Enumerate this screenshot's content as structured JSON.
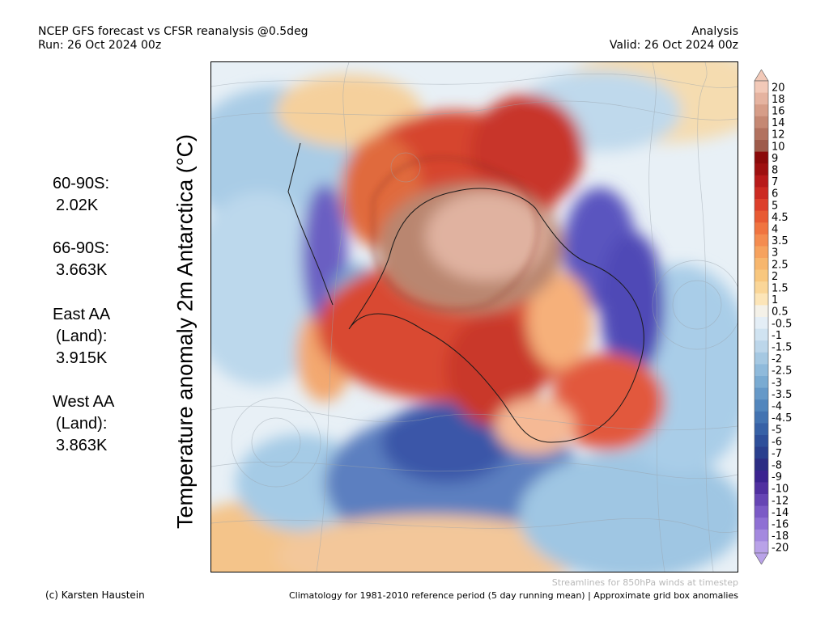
{
  "header": {
    "title_line1": "NCEP GFS forecast vs CFSR reanalysis @0.5deg",
    "title_line2": "Run: 26 Oct 2024 00z",
    "right_line1": "Analysis",
    "right_line2": "Valid: 26 Oct 2024 00z"
  },
  "stats": [
    {
      "label": "60-90S:",
      "value": "2.02K"
    },
    {
      "label": "66-90S:",
      "value": "3.663K"
    },
    {
      "label": "East AA",
      "sub": "(Land):",
      "value": "3.915K"
    },
    {
      "label": "West AA",
      "sub": "(Land):",
      "value": "3.863K"
    }
  ],
  "map": {
    "ylabel": "Temperature anomaly 2m Antarctica (°C)"
  },
  "colorbar": {
    "labels": [
      "20",
      "18",
      "16",
      "14",
      "12",
      "10",
      "9",
      "8",
      "7",
      "6",
      "5",
      "4.5",
      "4",
      "3.5",
      "3",
      "2.5",
      "2",
      "1.5",
      "1",
      "0.5",
      "-0.5",
      "-1",
      "-1.5",
      "-2",
      "-2.5",
      "-3",
      "-3.5",
      "-4",
      "-4.5",
      "-5",
      "-6",
      "-7",
      "-8",
      "-9",
      "-10",
      "-12",
      "-14",
      "-16",
      "-18",
      "-20"
    ],
    "colors": [
      "#f2c9b8",
      "#e5b3a0",
      "#d69d88",
      "#c58873",
      "#b2725f",
      "#9e5b4b",
      "#8b0a0a",
      "#9e1010",
      "#b81a1a",
      "#cc2a22",
      "#dd3f2b",
      "#e85a33",
      "#f07440",
      "#f48c50",
      "#f6a25e",
      "#f7b66d",
      "#f8c77e",
      "#fad698",
      "#fce5b8",
      "#f4f1e8",
      "#e4eef6",
      "#d0e3f1",
      "#bcd6ea",
      "#a5c8e2",
      "#8fbadb",
      "#7aabd2",
      "#6699c8",
      "#5286bd",
      "#4373b1",
      "#3761a6",
      "#2e4f9a",
      "#2a3f8e",
      "#2c2d84",
      "#3b2390",
      "#5030a0",
      "#6645b4",
      "#7b5ac6",
      "#8f70d4",
      "#a489df",
      "#b9a2e8"
    ]
  },
  "footer": {
    "credit": "(c) Karsten Haustein",
    "streamlines": "Streamlines for 850hPa winds at timestep",
    "climatology": "Climatology for 1981-2010 reference period (5 day running mean) | Approximate grid box anomalies"
  }
}
